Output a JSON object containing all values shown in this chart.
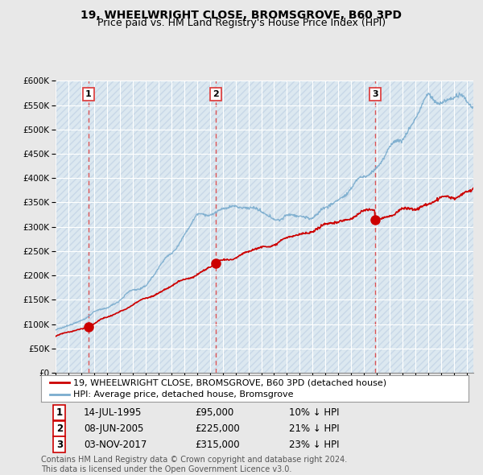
{
  "title": "19, WHEELWRIGHT CLOSE, BROMSGROVE, B60 3PD",
  "subtitle": "Price paid vs. HM Land Registry's House Price Index (HPI)",
  "ylim": [
    0,
    600000
  ],
  "yticks": [
    0,
    50000,
    100000,
    150000,
    200000,
    250000,
    300000,
    350000,
    400000,
    450000,
    500000,
    550000,
    600000
  ],
  "xlim_start": 1993.0,
  "xlim_end": 2025.5,
  "sale_dates": [
    1995.54,
    2005.44,
    2017.84
  ],
  "sale_prices": [
    95000,
    225000,
    315000
  ],
  "sale_labels": [
    "1",
    "2",
    "3"
  ],
  "sale_color": "#cc0000",
  "hpi_color": "#7aacce",
  "background_color": "#e8e8e8",
  "plot_bg_color": "#dce8f0",
  "grid_color": "#ffffff",
  "hatch_color": "#c8d8e8",
  "vline_color": "#dd4444",
  "legend_line1": "19, WHEELWRIGHT CLOSE, BROMSGROVE, B60 3PD (detached house)",
  "legend_line2": "HPI: Average price, detached house, Bromsgrove",
  "table_rows": [
    [
      "1",
      "14-JUL-1995",
      "£95,000",
      "10% ↓ HPI"
    ],
    [
      "2",
      "08-JUN-2005",
      "£225,000",
      "21% ↓ HPI"
    ],
    [
      "3",
      "03-NOV-2017",
      "£315,000",
      "23% ↓ HPI"
    ]
  ],
  "footer": "Contains HM Land Registry data © Crown copyright and database right 2024.\nThis data is licensed under the Open Government Licence v3.0.",
  "title_fontsize": 10,
  "subtitle_fontsize": 9,
  "tick_fontsize": 7.5,
  "legend_fontsize": 8,
  "table_fontsize": 8.5,
  "footer_fontsize": 7
}
